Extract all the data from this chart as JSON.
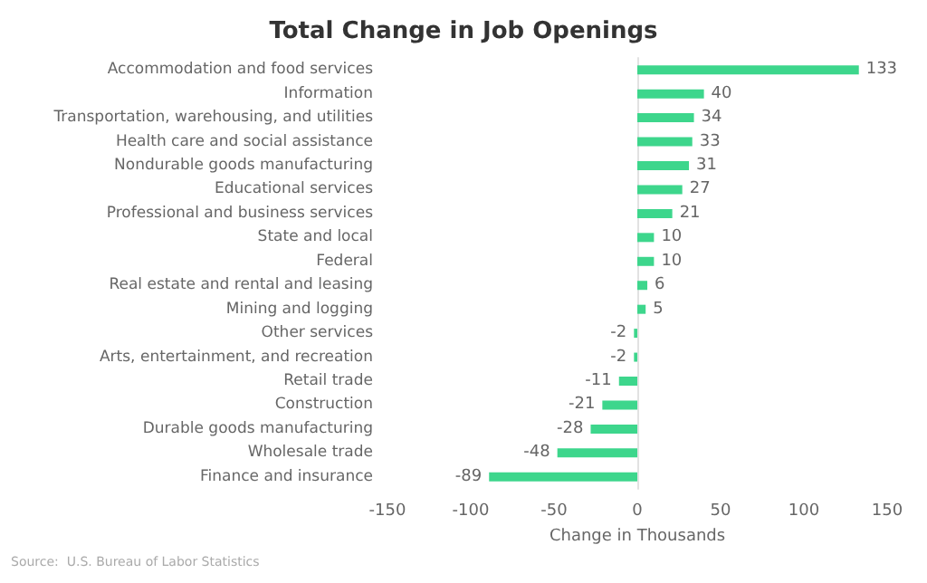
{
  "chart_data": {
    "type": "bar",
    "orientation": "horizontal",
    "title": "Total Change in Job Openings",
    "xlabel": "Change in Thousands",
    "categories": [
      "Accommodation and food services",
      "Information",
      "Transportation, warehousing, and utilities",
      "Health care and social assistance",
      "Nondurable goods manufacturing",
      "Educational services",
      "Professional and business services",
      "State and local",
      "Federal",
      "Real estate and rental and leasing",
      "Mining and logging",
      "Other services",
      "Arts, entertainment, and recreation",
      "Retail trade",
      "Construction",
      "Durable goods manufacturing",
      "Wholesale trade",
      "Finance and insurance"
    ],
    "values": [
      133,
      40,
      34,
      33,
      31,
      27,
      21,
      10,
      10,
      6,
      5,
      -2,
      -2,
      -11,
      -21,
      -28,
      -48,
      -89
    ],
    "color": "#3dd68c",
    "xlim": [
      -150,
      150
    ],
    "xticks": [
      -150,
      -100,
      -50,
      0,
      50,
      100,
      150
    ],
    "data_labels": true,
    "annotations": [
      "Source:  U.S. Bureau of Labor Statistics"
    ]
  }
}
